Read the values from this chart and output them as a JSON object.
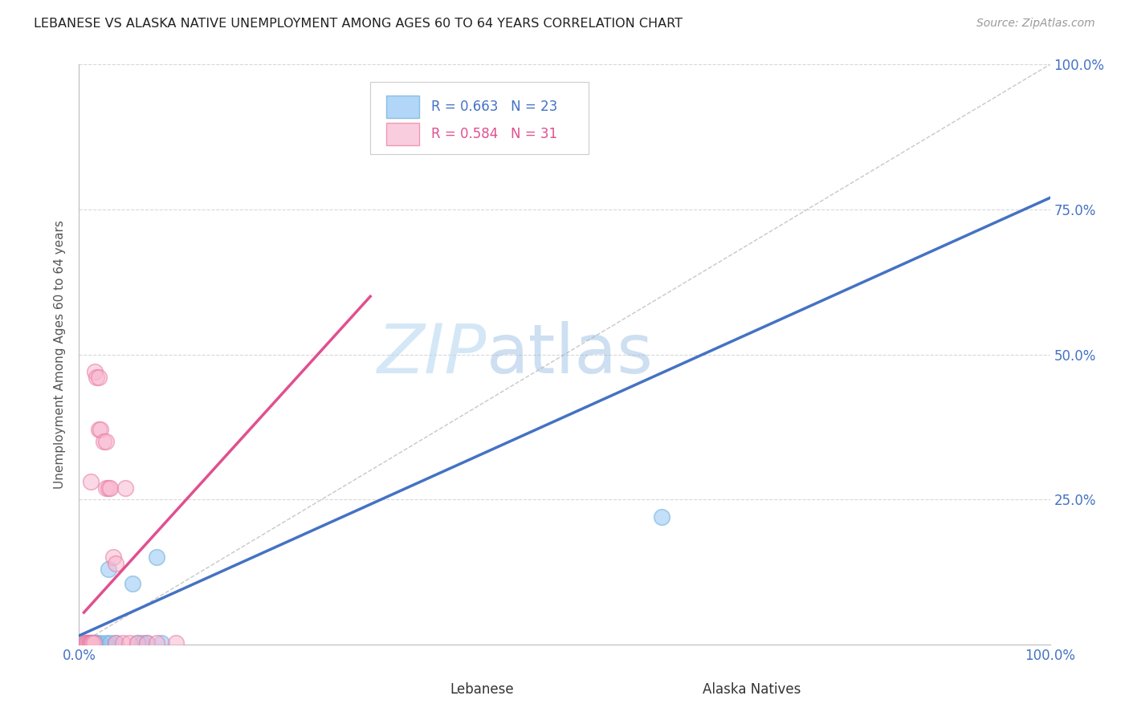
{
  "title": "LEBANESE VS ALASKA NATIVE UNEMPLOYMENT AMONG AGES 60 TO 64 YEARS CORRELATION CHART",
  "source": "Source: ZipAtlas.com",
  "ylabel": "Unemployment Among Ages 60 to 64 years",
  "watermark_zip": "ZIP",
  "watermark_atlas": "atlas",
  "blue_points": [
    [
      0.008,
      0.002
    ],
    [
      0.009,
      0.002
    ],
    [
      0.01,
      0.002
    ],
    [
      0.011,
      0.002
    ],
    [
      0.012,
      0.002
    ],
    [
      0.013,
      0.002
    ],
    [
      0.014,
      0.002
    ],
    [
      0.015,
      0.002
    ],
    [
      0.016,
      0.002
    ],
    [
      0.017,
      0.002
    ],
    [
      0.018,
      0.002
    ],
    [
      0.022,
      0.002
    ],
    [
      0.028,
      0.002
    ],
    [
      0.03,
      0.13
    ],
    [
      0.032,
      0.002
    ],
    [
      0.038,
      0.002
    ],
    [
      0.055,
      0.105
    ],
    [
      0.06,
      0.002
    ],
    [
      0.065,
      0.002
    ],
    [
      0.07,
      0.002
    ],
    [
      0.08,
      0.15
    ],
    [
      0.6,
      0.22
    ],
    [
      0.085,
      0.002
    ]
  ],
  "pink_points": [
    [
      0.006,
      0.002
    ],
    [
      0.007,
      0.002
    ],
    [
      0.008,
      0.002
    ],
    [
      0.009,
      0.002
    ],
    [
      0.01,
      0.002
    ],
    [
      0.011,
      0.002
    ],
    [
      0.012,
      0.002
    ],
    [
      0.013,
      0.002
    ],
    [
      0.014,
      0.002
    ],
    [
      0.015,
      0.002
    ],
    [
      0.012,
      0.28
    ],
    [
      0.016,
      0.47
    ],
    [
      0.018,
      0.46
    ],
    [
      0.02,
      0.46
    ],
    [
      0.02,
      0.37
    ],
    [
      0.022,
      0.37
    ],
    [
      0.025,
      0.35
    ],
    [
      0.028,
      0.35
    ],
    [
      0.028,
      0.27
    ],
    [
      0.03,
      0.27
    ],
    [
      0.032,
      0.27
    ],
    [
      0.035,
      0.15
    ],
    [
      0.038,
      0.14
    ],
    [
      0.038,
      0.002
    ],
    [
      0.045,
      0.002
    ],
    [
      0.048,
      0.27
    ],
    [
      0.052,
      0.002
    ],
    [
      0.06,
      0.002
    ],
    [
      0.07,
      0.002
    ],
    [
      0.08,
      0.002
    ],
    [
      0.1,
      0.002
    ]
  ],
  "blue_line": [
    [
      0.0,
      0.015
    ],
    [
      1.0,
      0.77
    ]
  ],
  "pink_line": [
    [
      0.005,
      0.055
    ],
    [
      0.3,
      0.6
    ]
  ],
  "blue_color": "#92c5f5",
  "blue_edge_color": "#6baed6",
  "pink_color": "#f9b8d0",
  "pink_edge_color": "#e879a0",
  "blue_line_color": "#4472c4",
  "pink_line_color": "#e05090",
  "diag_line_color": "#c8c8c8",
  "grid_color": "#d8d8d8",
  "bg_color": "#ffffff",
  "title_color": "#222222",
  "source_color": "#999999",
  "legend_r_blue_color": "#4472c4",
  "legend_r_pink_color": "#e05090",
  "axis_label_color": "#4472c4"
}
